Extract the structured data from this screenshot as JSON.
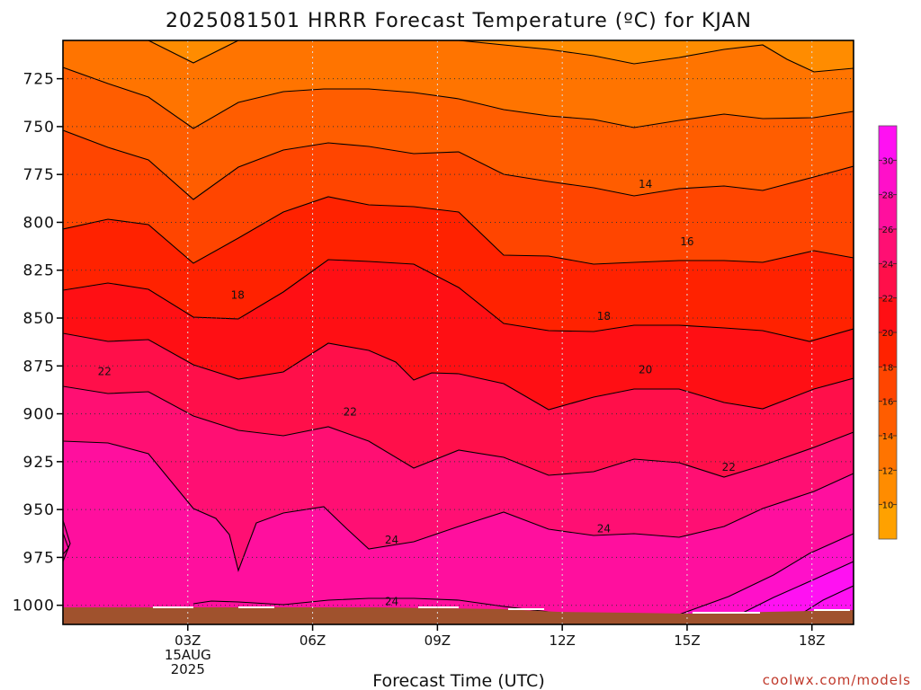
{
  "chart_data": {
    "type": "heatmap",
    "title": "2025081501 HRRR Forecast Temperature (ºC) for KJAN",
    "xlabel": "Forecast Time (UTC)",
    "ylabel": "",
    "credit": "coolwx.com/models",
    "x_axis": {
      "unit": "forecast hour (UTC)",
      "range": [
        0,
        19
      ],
      "ticks": [
        {
          "value": 3,
          "lines": [
            "03Z",
            "15AUG",
            "2025"
          ]
        },
        {
          "value": 6,
          "lines": [
            "06Z"
          ]
        },
        {
          "value": 9,
          "lines": [
            "09Z"
          ]
        },
        {
          "value": 12,
          "lines": [
            "12Z"
          ]
        },
        {
          "value": 15,
          "lines": [
            "15Z"
          ]
        },
        {
          "value": 18,
          "lines": [
            "18Z"
          ]
        }
      ]
    },
    "y_axis": {
      "unit": "pressure (hPa)",
      "range_top_to_bottom": [
        705,
        1010
      ],
      "ticks": [
        725,
        750,
        775,
        800,
        825,
        850,
        875,
        900,
        925,
        950,
        975,
        1000
      ]
    },
    "grid": true,
    "ground_color": "#a0522d",
    "levels": [
      8,
      10,
      12,
      14,
      16,
      18,
      20,
      22,
      24,
      26,
      28,
      30,
      32
    ],
    "colors": [
      "#ffa100",
      "#ff8c00",
      "#ff7400",
      "#ff5d00",
      "#ff4500",
      "#ff2200",
      "#ff0f14",
      "#ff0f4a",
      "#ff0f73",
      "#ff0f9e",
      "#ff10c9",
      "#ff11f2"
    ],
    "colorbar_ticks": [
      10,
      12,
      14,
      16,
      18,
      20,
      22,
      24,
      26,
      28,
      30
    ],
    "contour_labels": [
      {
        "x": 4.2,
        "p": 838,
        "text": "18"
      },
      {
        "x": 1.0,
        "p": 878,
        "text": "22"
      },
      {
        "x": 6.9,
        "p": 899,
        "text": "22"
      },
      {
        "x": 7.9,
        "p": 966,
        "text": "24"
      },
      {
        "x": 7.9,
        "p": 998,
        "text": "24"
      },
      {
        "x": 13.0,
        "p": 849,
        "text": "18"
      },
      {
        "x": 13.0,
        "p": 960,
        "text": "24"
      },
      {
        "x": 14.0,
        "p": 780,
        "text": "14"
      },
      {
        "x": 14.0,
        "p": 877,
        "text": "20"
      },
      {
        "x": 15.0,
        "p": 810,
        "text": "16"
      },
      {
        "x": 16.0,
        "p": 928,
        "text": "22"
      }
    ]
  }
}
